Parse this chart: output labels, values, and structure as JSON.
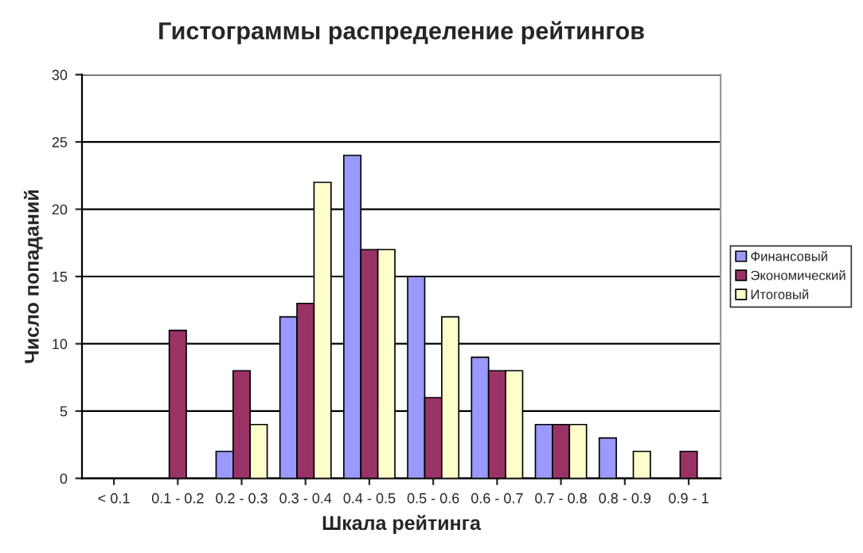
{
  "chart_data": {
    "type": "bar",
    "title": "Гистограммы распределение рейтингов",
    "xlabel": "Шкала рейтинга",
    "ylabel": "Число попаданий",
    "categories": [
      "< 0.1",
      "0.1 - 0.2",
      "0.2 - 0.3",
      "0.3 - 0.4",
      "0.4 - 0.5",
      "0.5 - 0.6",
      "0.6 - 0.7",
      "0.7 - 0.8",
      "0.8 - 0.9",
      "0.9 - 1"
    ],
    "series": [
      {
        "name": "Финансовый",
        "color": "#9999ff",
        "values": [
          null,
          null,
          2,
          12,
          24,
          15,
          9,
          4,
          3,
          null
        ]
      },
      {
        "name": "Экономический",
        "color": "#993366",
        "values": [
          null,
          11,
          8,
          13,
          17,
          6,
          8,
          4,
          null,
          2
        ]
      },
      {
        "name": "Итоговый",
        "color": "#ffffcc",
        "values": [
          null,
          null,
          4,
          22,
          17,
          12,
          8,
          4,
          2,
          null
        ]
      }
    ],
    "ylim": [
      0,
      30
    ],
    "yticks": [
      0,
      5,
      10,
      15,
      20,
      25,
      30
    ],
    "grid": "y",
    "legend": "right"
  }
}
